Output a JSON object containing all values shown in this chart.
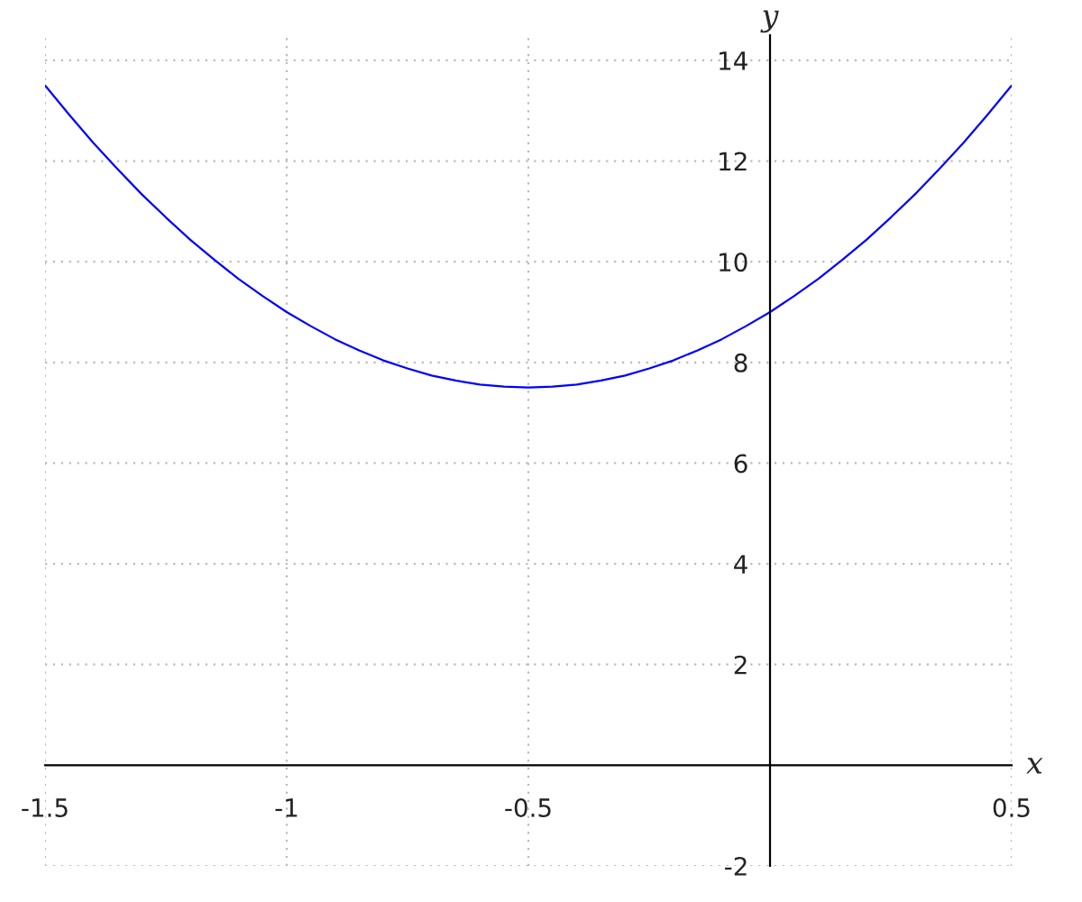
{
  "chart_data": {
    "type": "line",
    "xlabel": "x",
    "ylabel": "y",
    "x": [
      -1.5,
      -1.45,
      -1.4,
      -1.35,
      -1.3,
      -1.25,
      -1.2,
      -1.15,
      -1.1,
      -1.05,
      -1,
      -0.95,
      -0.9,
      -0.85,
      -0.8,
      -0.75,
      -0.7,
      -0.65,
      -0.6,
      -0.55,
      -0.5,
      -0.45,
      -0.4,
      -0.35,
      -0.3,
      -0.25,
      -0.2,
      -0.15,
      -0.1,
      -0.05,
      0,
      0.05,
      0.1,
      0.15,
      0.2,
      0.25,
      0.3,
      0.35,
      0.4,
      0.45,
      0.5
    ],
    "series": [
      {
        "color": "#0000ff",
        "values": [
          13.5,
          12.92,
          12.36,
          11.84,
          11.34,
          10.88,
          10.44,
          10.04,
          9.66,
          9.32,
          9,
          8.72,
          8.46,
          8.24,
          8.04,
          7.88,
          7.74,
          7.64,
          7.56,
          7.52,
          7.5,
          7.52,
          7.56,
          7.64,
          7.74,
          7.88,
          8.04,
          8.24,
          8.46,
          8.72,
          9,
          9.32,
          9.66,
          10.04,
          10.44,
          10.88,
          11.34,
          11.84,
          12.36,
          12.92,
          13.5
        ]
      }
    ],
    "xlim": [
      -1.5,
      0.5
    ],
    "ylim": [
      -2,
      14.5
    ],
    "xticks": [
      -1.5,
      -1,
      -0.5,
      0.5
    ],
    "yticks": [
      -2,
      2,
      4,
      6,
      8,
      10,
      12,
      14
    ],
    "grid": true,
    "line_style": "solid"
  }
}
